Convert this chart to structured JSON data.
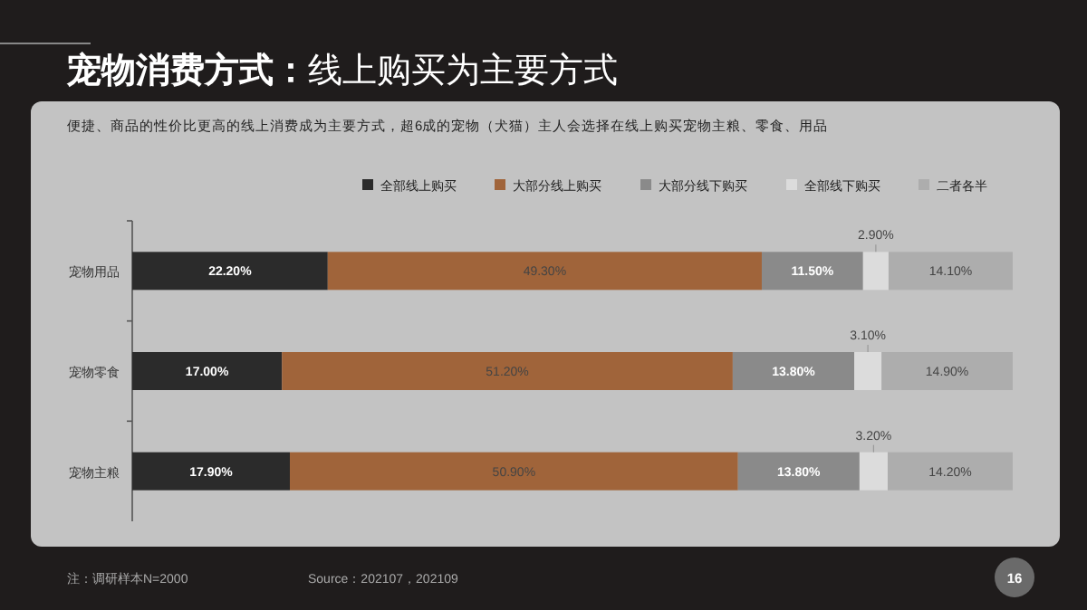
{
  "chart_data": {
    "type": "bar",
    "orientation": "horizontal",
    "stacked": true,
    "legend": "top right",
    "title": "宠物消费方式：线上购买为主要方式",
    "subtitle": "便捷、商品的性价比更高的线上消费成为主要方式，超6成的宠物（犬猫）主人会选择在线上购买宠物主粮、零食、用品",
    "annotations": [
      "注：调研样本N=2000",
      "Source：202107，202109",
      "16"
    ],
    "categories": [
      "宠物用品",
      "宠物零食",
      "宠物主粮"
    ],
    "series": [
      {
        "name": "全部线上购买",
        "color": "#2b2b2b",
        "values": [
          22.2,
          17.0,
          17.9
        ],
        "value_labels": [
          "22.20%",
          "17.00%",
          "17.90%"
        ]
      },
      {
        "name": "大部分线上购买",
        "color": "#a0643a",
        "values": [
          49.3,
          51.2,
          50.9
        ],
        "value_labels": [
          "49.30%",
          "51.20%",
          "50.90%"
        ]
      },
      {
        "name": "大部分线下购买",
        "color": "#8a8a8a",
        "values": [
          11.5,
          13.8,
          13.8
        ],
        "value_labels": [
          "11.50%",
          "13.80%",
          "13.80%"
        ]
      },
      {
        "name": "全部线下购买",
        "color": "#dcdcdc",
        "values": [
          2.9,
          3.1,
          3.2
        ],
        "value_labels": [
          "2.90%",
          "3.10%",
          "3.20%"
        ]
      },
      {
        "name": "二者各半",
        "color": "#adadad",
        "values": [
          14.1,
          14.9,
          14.2
        ],
        "value_labels": [
          "14.10%",
          "14.90%",
          "14.20%"
        ]
      }
    ]
  }
}
